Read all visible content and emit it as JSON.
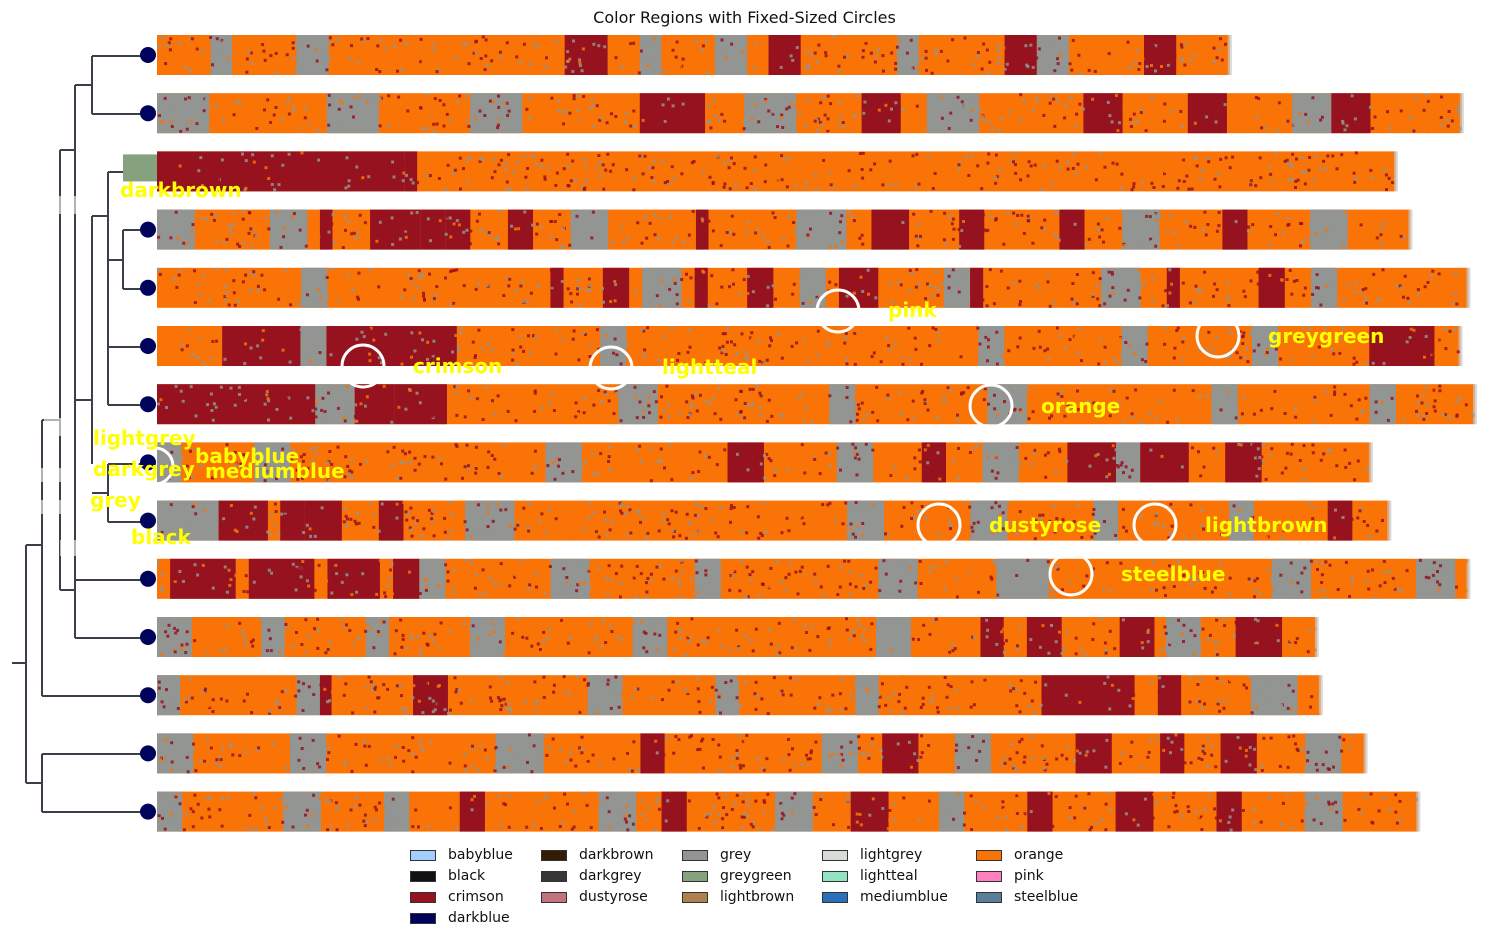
{
  "chart_data": {
    "type": "heatmap",
    "title": "Color Regions with Fixed-Sized Circles",
    "colors": {
      "babyblue": "#a2cffe",
      "black": "#111111",
      "crimson": "#96121f",
      "darkblue": "#00035b",
      "darkbrown": "#341c02",
      "darkgrey": "#363737",
      "dustyrose": "#c0737a",
      "grey": "#929591",
      "greygreen": "#86a17d",
      "lightbrown": "#ad8150",
      "lightgrey": "#d8dcd6",
      "lightteal": "#90e4c1",
      "mediumblue": "#2c6fbb",
      "orange": "#f97306",
      "pink": "#ff81c0",
      "steelblue": "#5a7d9a"
    },
    "legend": {
      "placement": "bottom-center",
      "entries": [
        "babyblue",
        "black",
        "crimson",
        "darkblue",
        "darkbrown",
        "darkgrey",
        "dustyrose",
        "grey",
        "greygreen",
        "lightbrown",
        "lightgrey",
        "lightteal",
        "mediumblue",
        "orange",
        "pink",
        "steelblue"
      ]
    },
    "rows": [
      {
        "length": 0.814,
        "crimson": [
          [
            0.38,
            0.42
          ],
          [
            0.57,
            0.6
          ],
          [
            0.79,
            0.82
          ],
          [
            0.92,
            0.95
          ]
        ],
        "grey": [
          [
            0.05,
            0.07
          ],
          [
            0.13,
            0.16
          ],
          [
            0.45,
            0.47
          ],
          [
            0.52,
            0.55
          ],
          [
            0.69,
            0.71
          ],
          [
            0.82,
            0.85
          ]
        ]
      },
      {
        "length": 0.99,
        "crimson": [
          [
            0.37,
            0.42
          ],
          [
            0.54,
            0.57
          ],
          [
            0.71,
            0.74
          ],
          [
            0.79,
            0.82
          ],
          [
            0.9,
            0.93
          ]
        ],
        "grey": [
          [
            0.0,
            0.04
          ],
          [
            0.13,
            0.17
          ],
          [
            0.24,
            0.28
          ],
          [
            0.45,
            0.49
          ],
          [
            0.59,
            0.63
          ],
          [
            0.87,
            0.9
          ]
        ]
      },
      {
        "length": 0.94,
        "crimson": [
          [
            0.0,
            0.2
          ],
          [
            0.2,
            0.21
          ]
        ],
        "grey": []
      },
      {
        "length": 0.951,
        "crimson": [
          [
            0.13,
            0.14
          ],
          [
            0.17,
            0.21
          ],
          [
            0.21,
            0.23
          ],
          [
            0.23,
            0.25
          ],
          [
            0.28,
            0.3
          ],
          [
            0.43,
            0.44
          ],
          [
            0.57,
            0.6
          ],
          [
            0.64,
            0.66
          ],
          [
            0.72,
            0.74
          ],
          [
            0.85,
            0.87
          ]
        ],
        "grey": [
          [
            0.0,
            0.03
          ],
          [
            0.09,
            0.12
          ],
          [
            0.33,
            0.36
          ],
          [
            0.51,
            0.55
          ],
          [
            0.77,
            0.8
          ],
          [
            0.92,
            0.95
          ]
        ]
      },
      {
        "length": 0.995,
        "crimson": [
          [
            0.3,
            0.31
          ],
          [
            0.34,
            0.36
          ],
          [
            0.41,
            0.42
          ],
          [
            0.45,
            0.47
          ],
          [
            0.52,
            0.55
          ],
          [
            0.62,
            0.63
          ],
          [
            0.77,
            0.78
          ],
          [
            0.84,
            0.86
          ]
        ],
        "grey": [
          [
            0.11,
            0.13
          ],
          [
            0.37,
            0.4
          ],
          [
            0.49,
            0.51
          ],
          [
            0.6,
            0.62
          ],
          [
            0.72,
            0.75
          ],
          [
            0.88,
            0.9
          ]
        ]
      },
      {
        "length": 0.989,
        "crimson": [
          [
            0.05,
            0.11
          ],
          [
            0.13,
            0.23
          ],
          [
            0.93,
            0.98
          ]
        ],
        "grey": [
          [
            0.11,
            0.13
          ],
          [
            0.34,
            0.36
          ],
          [
            0.63,
            0.65
          ],
          [
            0.74,
            0.76
          ],
          [
            0.84,
            0.86
          ]
        ]
      },
      {
        "length": 1.0,
        "crimson": [
          [
            0.0,
            0.12
          ],
          [
            0.15,
            0.18
          ],
          [
            0.18,
            0.22
          ]
        ],
        "grey": [
          [
            0.12,
            0.15
          ],
          [
            0.35,
            0.38
          ],
          [
            0.51,
            0.53
          ],
          [
            0.63,
            0.66
          ],
          [
            0.8,
            0.82
          ],
          [
            0.92,
            0.94
          ]
        ]
      },
      {
        "length": 0.921,
        "crimson": [
          [
            0.47,
            0.5
          ],
          [
            0.63,
            0.65
          ],
          [
            0.75,
            0.79
          ],
          [
            0.81,
            0.85
          ],
          [
            0.88,
            0.91
          ]
        ],
        "grey": [
          [
            0.0,
            0.02
          ],
          [
            0.08,
            0.11
          ],
          [
            0.32,
            0.35
          ],
          [
            0.56,
            0.59
          ],
          [
            0.68,
            0.71
          ],
          [
            0.79,
            0.81
          ]
        ]
      },
      {
        "length": 0.935,
        "crimson": [
          [
            0.05,
            0.09
          ],
          [
            0.1,
            0.12
          ],
          [
            0.12,
            0.15
          ],
          [
            0.18,
            0.2
          ],
          [
            0.95,
            0.97
          ]
        ],
        "grey": [
          [
            0.0,
            0.05
          ],
          [
            0.25,
            0.29
          ],
          [
            0.56,
            0.59
          ],
          [
            0.66,
            0.69
          ],
          [
            0.76,
            0.78
          ],
          [
            0.87,
            0.89
          ]
        ]
      },
      {
        "length": 0.995,
        "crimson": [
          [
            0.01,
            0.06
          ],
          [
            0.07,
            0.12
          ],
          [
            0.13,
            0.17
          ],
          [
            0.18,
            0.2
          ]
        ],
        "grey": [
          [
            0.2,
            0.22
          ],
          [
            0.3,
            0.33
          ],
          [
            0.41,
            0.43
          ],
          [
            0.55,
            0.58
          ],
          [
            0.64,
            0.68
          ],
          [
            0.85,
            0.88
          ],
          [
            0.96,
            0.99
          ]
        ]
      },
      {
        "length": 0.88,
        "crimson": [
          [
            0.71,
            0.73
          ],
          [
            0.75,
            0.78
          ],
          [
            0.83,
            0.86
          ],
          [
            0.93,
            0.97
          ]
        ],
        "grey": [
          [
            0.0,
            0.03
          ],
          [
            0.09,
            0.11
          ],
          [
            0.18,
            0.2
          ],
          [
            0.27,
            0.3
          ],
          [
            0.41,
            0.44
          ],
          [
            0.62,
            0.65
          ],
          [
            0.87,
            0.9
          ]
        ]
      },
      {
        "length": 0.883,
        "crimson": [
          [
            0.14,
            0.15
          ],
          [
            0.22,
            0.25
          ],
          [
            0.76,
            0.8
          ],
          [
            0.8,
            0.84
          ],
          [
            0.86,
            0.88
          ]
        ],
        "grey": [
          [
            0.0,
            0.02
          ],
          [
            0.12,
            0.14
          ],
          [
            0.37,
            0.4
          ],
          [
            0.48,
            0.5
          ],
          [
            0.6,
            0.62
          ],
          [
            0.94,
            0.98
          ]
        ]
      },
      {
        "length": 0.917,
        "crimson": [
          [
            0.4,
            0.42
          ],
          [
            0.6,
            0.63
          ],
          [
            0.76,
            0.79
          ],
          [
            0.83,
            0.85
          ],
          [
            0.88,
            0.91
          ]
        ],
        "grey": [
          [
            0.0,
            0.03
          ],
          [
            0.11,
            0.14
          ],
          [
            0.28,
            0.32
          ],
          [
            0.55,
            0.58
          ],
          [
            0.66,
            0.69
          ],
          [
            0.95,
            0.98
          ]
        ]
      },
      {
        "length": 0.957,
        "crimson": [
          [
            0.24,
            0.26
          ],
          [
            0.4,
            0.42
          ],
          [
            0.55,
            0.58
          ],
          [
            0.69,
            0.71
          ],
          [
            0.76,
            0.79
          ],
          [
            0.84,
            0.86
          ]
        ],
        "grey": [
          [
            0.0,
            0.02
          ],
          [
            0.1,
            0.13
          ],
          [
            0.18,
            0.2
          ],
          [
            0.35,
            0.38
          ],
          [
            0.49,
            0.52
          ],
          [
            0.62,
            0.64
          ],
          [
            0.91,
            0.94
          ]
        ]
      }
    ],
    "circle_labels": [
      {
        "text": "pink"
      },
      {
        "text": "greygreen"
      },
      {
        "text": "crimson"
      },
      {
        "text": "lightteal"
      },
      {
        "text": "orange"
      },
      {
        "text": "dustyrose"
      },
      {
        "text": "lightbrown"
      },
      {
        "text": "steelblue"
      },
      {
        "text": "babyblue"
      },
      {
        "text": "darkgrey"
      },
      {
        "text": "mediumblue"
      }
    ],
    "tree_labels": [
      "darkbrown",
      "lightgrey",
      "grey",
      "black"
    ]
  }
}
